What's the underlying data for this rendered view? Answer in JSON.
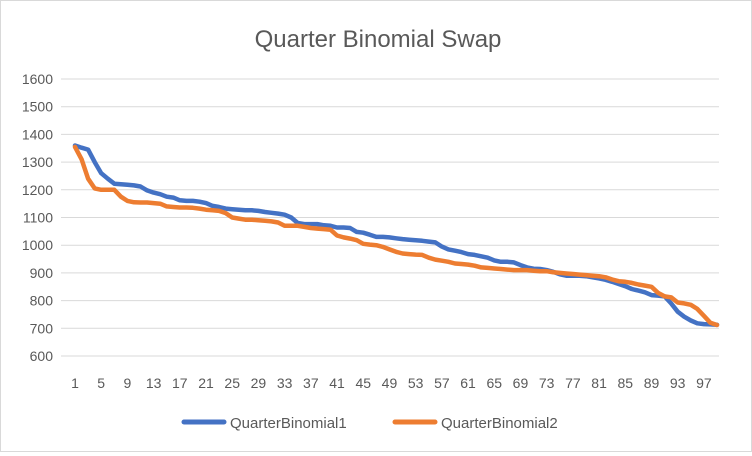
{
  "chart_data": {
    "type": "line",
    "title": "Quarter Binomial Swap",
    "xlabel": "",
    "ylabel": "",
    "ylim": [
      600,
      1600
    ],
    "yticks": [
      600,
      700,
      800,
      900,
      1000,
      1100,
      1200,
      1300,
      1400,
      1500,
      1600
    ],
    "x": [
      1,
      2,
      3,
      4,
      5,
      6,
      7,
      8,
      9,
      10,
      11,
      12,
      13,
      14,
      15,
      16,
      17,
      18,
      19,
      20,
      21,
      22,
      23,
      24,
      25,
      26,
      27,
      28,
      29,
      30,
      31,
      32,
      33,
      34,
      35,
      36,
      37,
      38,
      39,
      40,
      41,
      42,
      43,
      44,
      45,
      46,
      47,
      48,
      49,
      50,
      51,
      52,
      53,
      54,
      55,
      56,
      57,
      58,
      59,
      60,
      61,
      62,
      63,
      64,
      65,
      66,
      67,
      68,
      69,
      70,
      71,
      72,
      73,
      74,
      75,
      76,
      77,
      78,
      79,
      80,
      81,
      82,
      83,
      84,
      85,
      86,
      87,
      88,
      89,
      90,
      91,
      92,
      93,
      94,
      95,
      96,
      97,
      98,
      99
    ],
    "xtick_labels": [
      "1",
      "5",
      "9",
      "13",
      "17",
      "21",
      "25",
      "29",
      "33",
      "37",
      "41",
      "45",
      "49",
      "53",
      "57",
      "61",
      "65",
      "69",
      "73",
      "77",
      "81",
      "85",
      "89",
      "93",
      "97"
    ],
    "xtick_values": [
      1,
      5,
      9,
      13,
      17,
      21,
      25,
      29,
      33,
      37,
      41,
      45,
      49,
      53,
      57,
      61,
      65,
      69,
      73,
      77,
      81,
      85,
      89,
      93,
      97
    ],
    "grid": "horizontal",
    "legend_position": "bottom",
    "series": [
      {
        "name": "QuarterBinomial1",
        "color": "#4472c4",
        "values": [
          1360,
          1352,
          1345,
          1300,
          1260,
          1240,
          1222,
          1220,
          1218,
          1216,
          1212,
          1198,
          1190,
          1184,
          1175,
          1172,
          1162,
          1160,
          1160,
          1157,
          1152,
          1142,
          1138,
          1132,
          1130,
          1128,
          1126,
          1126,
          1124,
          1120,
          1117,
          1114,
          1110,
          1100,
          1080,
          1076,
          1076,
          1076,
          1072,
          1070,
          1064,
          1064,
          1062,
          1048,
          1045,
          1038,
          1030,
          1030,
          1028,
          1025,
          1022,
          1020,
          1018,
          1016,
          1013,
          1010,
          995,
          985,
          980,
          975,
          968,
          965,
          960,
          955,
          945,
          940,
          940,
          938,
          928,
          920,
          915,
          914,
          910,
          904,
          895,
          890,
          890,
          890,
          888,
          884,
          880,
          875,
          868,
          860,
          852,
          842,
          836,
          830,
          820,
          818,
          815,
          790,
          760,
          742,
          728,
          718,
          715,
          714,
          713
        ]
      },
      {
        "name": "QuarterBinomial2",
        "color": "#ed7d31",
        "values": [
          1355,
          1310,
          1240,
          1205,
          1200,
          1200,
          1200,
          1175,
          1160,
          1155,
          1154,
          1154,
          1152,
          1150,
          1140,
          1138,
          1136,
          1136,
          1135,
          1132,
          1128,
          1126,
          1124,
          1116,
          1100,
          1096,
          1092,
          1092,
          1090,
          1088,
          1086,
          1082,
          1070,
          1070,
          1070,
          1066,
          1062,
          1060,
          1058,
          1056,
          1035,
          1028,
          1024,
          1018,
          1005,
          1002,
          1000,
          994,
          985,
          976,
          970,
          968,
          966,
          965,
          955,
          948,
          944,
          940,
          934,
          932,
          930,
          926,
          920,
          918,
          916,
          914,
          912,
          910,
          910,
          910,
          908,
          906,
          906,
          902,
          900,
          898,
          896,
          894,
          892,
          890,
          888,
          884,
          876,
          870,
          868,
          864,
          858,
          854,
          850,
          828,
          815,
          812,
          793,
          790,
          785,
          770,
          745,
          720,
          712
        ]
      }
    ]
  }
}
